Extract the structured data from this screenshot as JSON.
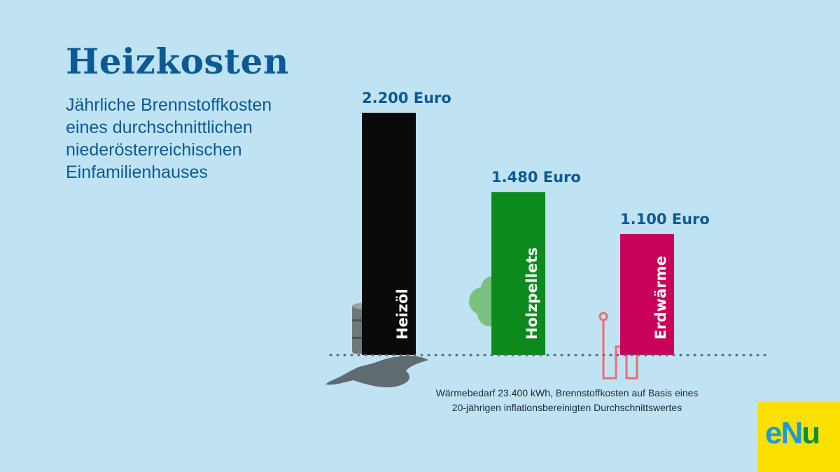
{
  "header": {
    "title": "Heizkosten",
    "subtitle_lines": [
      "Jährliche Brennstoffkosten",
      "eines durchschnittlichen",
      "niederösterreichischen",
      "Einfamilienhauses"
    ]
  },
  "chart_data": {
    "type": "bar",
    "categories": [
      "Heizöl",
      "Holzpellets",
      "Erdwärme"
    ],
    "values": [
      2200,
      1480,
      1100
    ],
    "value_labels": [
      "2.200 Euro",
      "1.480 Euro",
      "1.100 Euro"
    ],
    "colors": [
      "#0a0a0a",
      "#0d8a1e",
      "#c8005a"
    ],
    "label_color": "#0b5a97",
    "ylim": [
      0,
      2200
    ],
    "grid": false,
    "legend": "none"
  },
  "note": {
    "lines": [
      "Wärmebedarf 23.400 kWh, Brennstoffkosten auf Basis eines",
      "20-jährigen inflationsbereinigten Durchschnittswertes"
    ]
  },
  "logo": {
    "text_e": "e",
    "text_n": "N",
    "text_u": "u"
  }
}
